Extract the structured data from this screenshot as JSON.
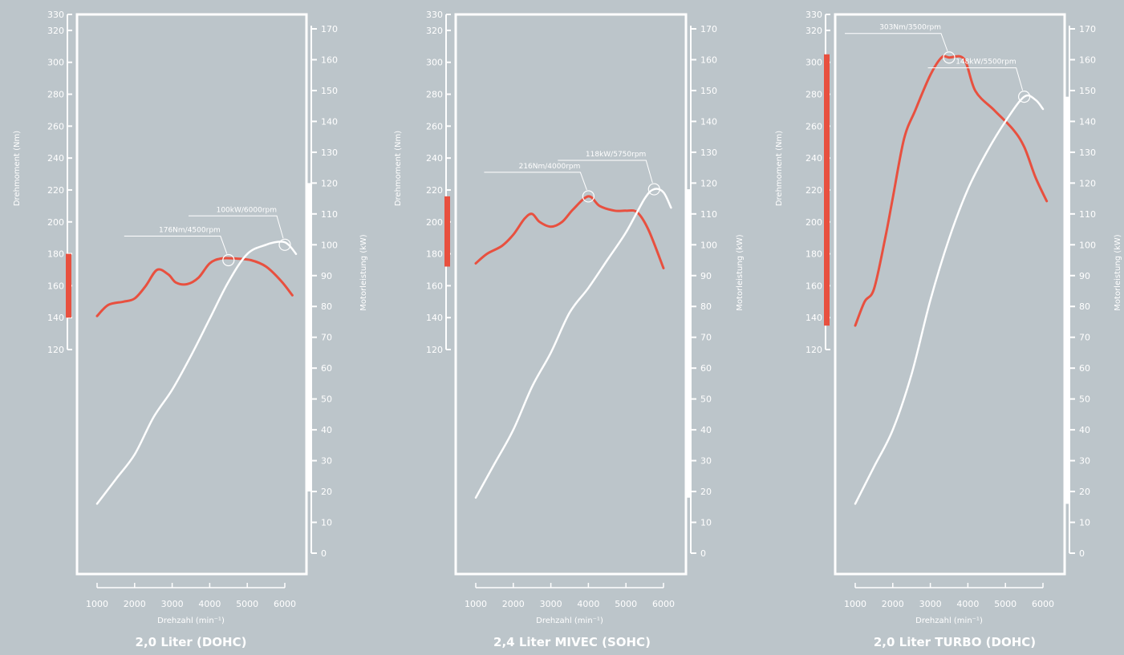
{
  "colors": {
    "background": "#bcc5ca",
    "torque": "#e8503f",
    "power": "#ffffff",
    "axis": "#ffffff"
  },
  "chart_data": [
    {
      "type": "line",
      "title": "2,0 Liter (DOHC)",
      "xlabel": "Drehzahl (min⁻¹)",
      "y1label": "Drehmoment (Nm)",
      "y2label": "Motorleistung (kW)",
      "x_ticks": [
        "1000",
        "2000",
        "3000",
        "4000",
        "5000",
        "6000"
      ],
      "y1_ticks": [
        "120",
        "140",
        "160",
        "180",
        "200",
        "220",
        "240",
        "260",
        "280",
        "300",
        "320",
        "330"
      ],
      "y2_ticks": [
        "0",
        "10",
        "20",
        "30",
        "40",
        "50",
        "60",
        "70",
        "80",
        "90",
        "100",
        "110",
        "120",
        "130",
        "140",
        "150",
        "160",
        "170"
      ],
      "xlim": [
        1000,
        6000
      ],
      "y1lim": [
        120,
        330
      ],
      "y2lim": [
        0,
        170
      ],
      "torque_range_bar": [
        140,
        180
      ],
      "power_range_bar": [
        20,
        120
      ],
      "series": [
        {
          "kind": "torque",
          "axis": "left",
          "x": [
            1000,
            1300,
            1700,
            2000,
            2300,
            2600,
            2900,
            3100,
            3400,
            3700,
            4000,
            4300,
            4700,
            5100,
            5500,
            5900,
            6200
          ],
          "values": [
            141,
            148,
            150,
            152,
            160,
            170,
            167,
            162,
            161,
            165,
            174,
            177,
            177,
            176,
            172,
            163,
            154
          ]
        },
        {
          "kind": "power",
          "axis": "right",
          "x": [
            1000,
            1500,
            2000,
            2500,
            3000,
            3500,
            4000,
            4500,
            5000,
            5500,
            5900,
            6100,
            6300
          ],
          "values": [
            16,
            24,
            32,
            44,
            53,
            64,
            76,
            88,
            97,
            100,
            101,
            100,
            97
          ]
        }
      ],
      "annotations": [
        {
          "label": "176Nm/4500rpm",
          "x": 4500,
          "y": 176,
          "axis": "left"
        },
        {
          "label": "100kW/6000rpm",
          "x": 6000,
          "y": 100,
          "axis": "right"
        }
      ]
    },
    {
      "type": "line",
      "title": "2,4 Liter MIVEC (SOHC)",
      "xlabel": "Drehzahl (min⁻¹)",
      "y1label": "Drehmoment (Nm)",
      "y2label": "Motorleistung (kW)",
      "x_ticks": [
        "1000",
        "2000",
        "3000",
        "4000",
        "5000",
        "6000"
      ],
      "y1_ticks": [
        "120",
        "140",
        "160",
        "180",
        "200",
        "220",
        "240",
        "260",
        "280",
        "300",
        "320",
        "330"
      ],
      "y2_ticks": [
        "0",
        "10",
        "20",
        "30",
        "40",
        "50",
        "60",
        "70",
        "80",
        "90",
        "100",
        "110",
        "120",
        "130",
        "140",
        "150",
        "160",
        "170"
      ],
      "xlim": [
        1000,
        6000
      ],
      "y1lim": [
        120,
        330
      ],
      "y2lim": [
        0,
        170
      ],
      "torque_range_bar": [
        172,
        216
      ],
      "power_range_bar": [
        18,
        118
      ],
      "series": [
        {
          "kind": "torque",
          "axis": "left",
          "x": [
            1000,
            1300,
            1700,
            2000,
            2300,
            2500,
            2700,
            3000,
            3300,
            3600,
            4000,
            4300,
            4700,
            5000,
            5300,
            5600,
            6000
          ],
          "values": [
            174,
            180,
            185,
            192,
            202,
            205,
            200,
            197,
            200,
            208,
            216,
            210,
            207,
            207,
            206,
            195,
            171
          ]
        },
        {
          "kind": "power",
          "axis": "right",
          "x": [
            1000,
            1500,
            2000,
            2500,
            3000,
            3500,
            4000,
            4500,
            5000,
            5500,
            5750,
            6000,
            6200
          ],
          "values": [
            18,
            29,
            40,
            54,
            65,
            78,
            86,
            95,
            104,
            115,
            118,
            117,
            112
          ]
        }
      ],
      "annotations": [
        {
          "label": "216Nm/4000rpm",
          "x": 4000,
          "y": 216,
          "axis": "left"
        },
        {
          "label": "118kW/5750rpm",
          "x": 5750,
          "y": 118,
          "axis": "right"
        }
      ]
    },
    {
      "type": "line",
      "title": "2,0 Liter TURBO (DOHC)",
      "xlabel": "Drehzahl (min⁻¹)",
      "y1label": "Drehmoment (Nm)",
      "y2label": "Motorleistung (kW)",
      "x_ticks": [
        "1000",
        "2000",
        "3000",
        "4000",
        "5000",
        "6000"
      ],
      "y1_ticks": [
        "120",
        "140",
        "160",
        "180",
        "200",
        "220",
        "240",
        "260",
        "280",
        "300",
        "320",
        "330"
      ],
      "y2_ticks": [
        "0",
        "10",
        "20",
        "30",
        "40",
        "50",
        "60",
        "70",
        "80",
        "90",
        "100",
        "110",
        "120",
        "130",
        "140",
        "150",
        "160",
        "170"
      ],
      "xlim": [
        1000,
        6000
      ],
      "y1lim": [
        120,
        330
      ],
      "y2lim": [
        0,
        170
      ],
      "torque_range_bar": [
        135,
        305
      ],
      "power_range_bar": [
        16,
        148
      ],
      "series": [
        {
          "kind": "torque",
          "axis": "left",
          "x": [
            1000,
            1250,
            1500,
            1800,
            2000,
            2300,
            2600,
            3000,
            3300,
            3500,
            3900,
            4200,
            4700,
            5200,
            5500,
            5800,
            6100
          ],
          "values": [
            135,
            150,
            158,
            190,
            215,
            252,
            270,
            292,
            303,
            303,
            302,
            282,
            270,
            258,
            247,
            228,
            213
          ]
        },
        {
          "kind": "power",
          "axis": "right",
          "x": [
            1000,
            1500,
            2000,
            2500,
            3000,
            3500,
            4000,
            4500,
            5000,
            5500,
            5800,
            6000
          ],
          "values": [
            16,
            28,
            40,
            58,
            82,
            102,
            118,
            130,
            140,
            148,
            147,
            144
          ]
        }
      ],
      "annotations": [
        {
          "label": "303Nm/3500rpm",
          "x": 3500,
          "y": 303,
          "axis": "left"
        },
        {
          "label": "148kW/5500rpm",
          "x": 5500,
          "y": 148,
          "axis": "right"
        }
      ]
    }
  ]
}
